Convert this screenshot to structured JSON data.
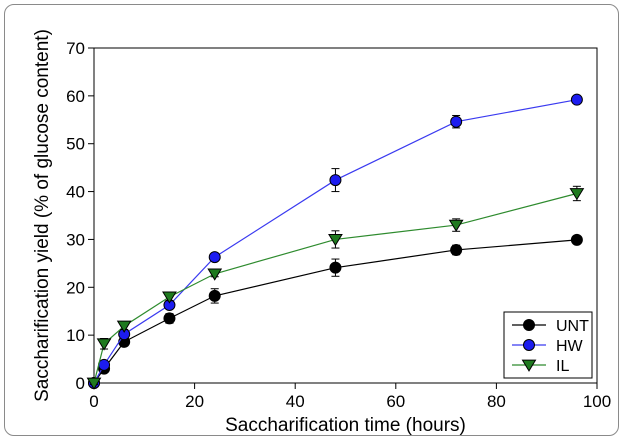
{
  "chart_data": {
    "type": "line",
    "title": "",
    "xlabel": "Saccharification time (hours)",
    "ylabel": "Saccharification yield (% of glucose content)",
    "xlim": [
      0,
      100
    ],
    "ylim": [
      0,
      70
    ],
    "xticks": [
      0,
      20,
      40,
      60,
      80,
      100
    ],
    "yticks": [
      0,
      10,
      20,
      30,
      40,
      50,
      60,
      70
    ],
    "grid": false,
    "legend_position": "bottom-right",
    "series": [
      {
        "name": "UNT",
        "marker": "circle",
        "marker_color": "#000000",
        "line_color": "#000000",
        "x": [
          0,
          2,
          6,
          15,
          24,
          48,
          72,
          96
        ],
        "y": [
          0,
          3.0,
          8.6,
          13.5,
          18.2,
          24.1,
          27.8,
          29.9
        ],
        "error": [
          0.3,
          0.5,
          0.7,
          1.0,
          1.5,
          1.8,
          1.0,
          0.7
        ]
      },
      {
        "name": "HW",
        "marker": "circle",
        "marker_color": "#1c1cf0",
        "line_color": "#3a3af0",
        "x": [
          0,
          2,
          6,
          15,
          24,
          48,
          72,
          96
        ],
        "y": [
          0,
          3.8,
          10.2,
          16.3,
          26.3,
          42.4,
          54.6,
          59.2
        ],
        "error": [
          0.3,
          0.7,
          0.8,
          0.8,
          0.7,
          2.4,
          1.3,
          0.7
        ]
      },
      {
        "name": "IL",
        "marker": "triangle-down",
        "marker_color": "#1f7a1f",
        "line_color": "#2e8b2e",
        "x": [
          0,
          2,
          6,
          15,
          24,
          48,
          72,
          96
        ],
        "y": [
          0,
          8.2,
          11.9,
          18.0,
          22.8,
          30.0,
          33.0,
          39.6
        ],
        "error": [
          0.3,
          1.1,
          0.7,
          0.8,
          0.6,
          1.8,
          1.3,
          1.5
        ]
      }
    ]
  }
}
